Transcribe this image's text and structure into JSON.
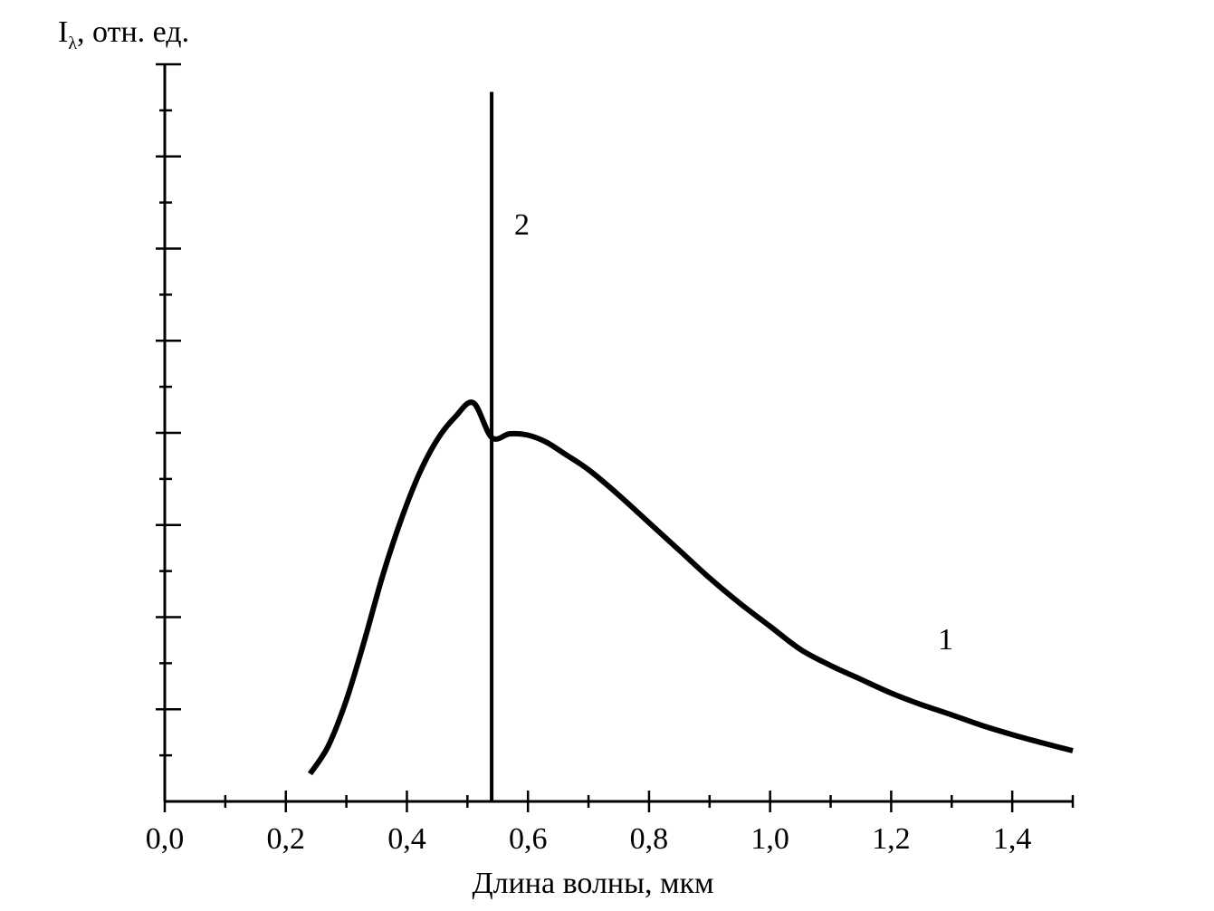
{
  "chart_data": {
    "type": "line",
    "title": "",
    "ylabel_main": "I",
    "ylabel_sub": "λ",
    "ylabel_rest": ", отн. ед.",
    "xlabel": "Длина волны, мкм",
    "xlim": [
      0.0,
      1.5
    ],
    "ylim": [
      0,
      16
    ],
    "grid": false,
    "x_ticks": [
      {
        "value": 0.0,
        "label": "0,0"
      },
      {
        "value": 0.2,
        "label": "0,2"
      },
      {
        "value": 0.4,
        "label": "0,4"
      },
      {
        "value": 0.6,
        "label": "0,6"
      },
      {
        "value": 0.8,
        "label": "0,8"
      },
      {
        "value": 1.0,
        "label": "1,0"
      },
      {
        "value": 1.2,
        "label": "1,2"
      },
      {
        "value": 1.4,
        "label": "1,4"
      }
    ],
    "x_minor_ticks": [
      0.1,
      0.3,
      0.5,
      0.7,
      0.9,
      1.1,
      1.3,
      1.5
    ],
    "y_ticks": [
      2,
      4,
      6,
      8,
      10,
      12,
      14,
      16
    ],
    "y_minor_ticks": [
      1,
      3,
      5,
      7,
      9,
      11,
      13,
      15
    ],
    "series": [
      {
        "name": "1",
        "x": [
          0.24,
          0.27,
          0.3,
          0.33,
          0.36,
          0.39,
          0.42,
          0.45,
          0.48,
          0.51,
          0.54,
          0.57,
          0.6,
          0.63,
          0.66,
          0.7,
          0.75,
          0.8,
          0.85,
          0.9,
          0.95,
          1.0,
          1.05,
          1.1,
          1.15,
          1.2,
          1.25,
          1.3,
          1.35,
          1.4,
          1.45,
          1.5
        ],
        "y": [
          0.6,
          1.2,
          2.2,
          3.5,
          4.9,
          6.1,
          7.1,
          7.85,
          8.35,
          8.65,
          7.9,
          7.98,
          7.95,
          7.8,
          7.55,
          7.2,
          6.65,
          6.05,
          5.45,
          4.85,
          4.3,
          3.8,
          3.3,
          2.95,
          2.65,
          2.35,
          2.1,
          1.88,
          1.65,
          1.45,
          1.27,
          1.1
        ]
      },
      {
        "name": "2",
        "x": [
          0.54,
          0.54
        ],
        "y": [
          0,
          15.4
        ]
      }
    ]
  }
}
